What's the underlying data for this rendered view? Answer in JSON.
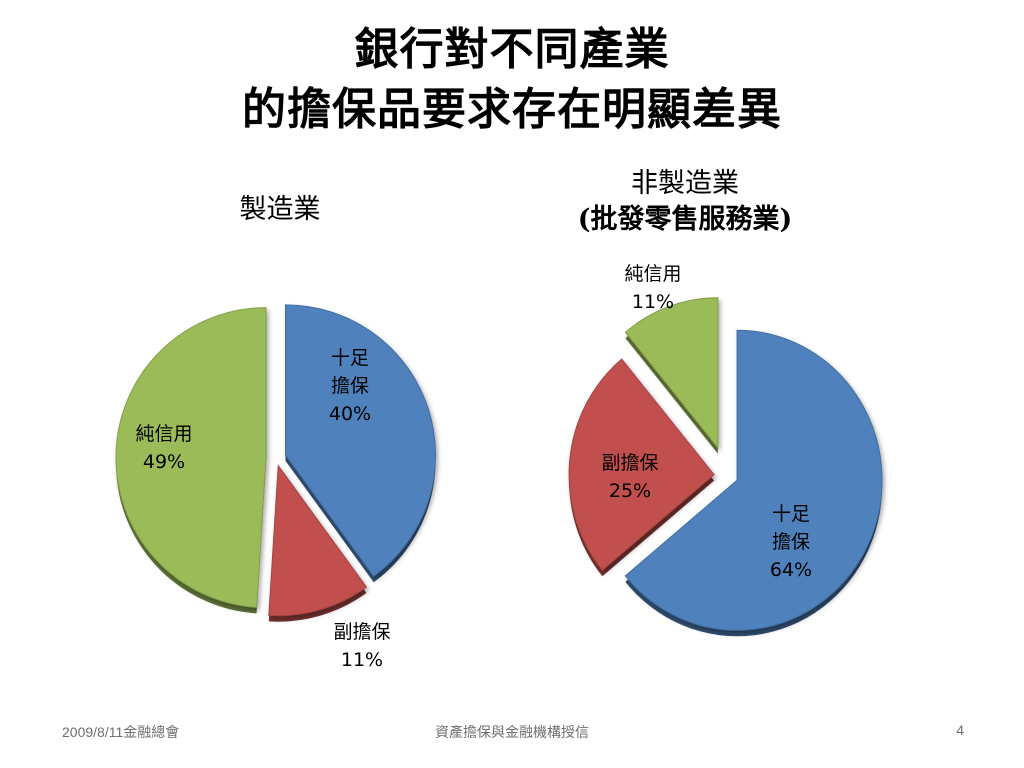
{
  "slide": {
    "title_line1": "銀行對不同產業",
    "title_line2": "的擔保品要求存在明顯差異"
  },
  "footer": {
    "left": "2009/8/11金融總會",
    "center": "資產擔保與金融機構授信",
    "right": "4"
  },
  "colors": {
    "blue": "#4f81bd",
    "red": "#c0504d",
    "green": "#9bbb59"
  },
  "chart_data": [
    {
      "type": "pie",
      "title_lines": [
        "製造業"
      ],
      "slices": [
        {
          "label_lines": [
            "十足",
            "擔保"
          ],
          "value_label": "40%",
          "value": 40,
          "color": "#4f81bd"
        },
        {
          "label_lines": [
            "副擔保"
          ],
          "value_label": "11%",
          "value": 11,
          "color": "#c0504d"
        },
        {
          "label_lines": [
            "純信用"
          ],
          "value_label": "49%",
          "value": 49,
          "color": "#9bbb59"
        }
      ]
    },
    {
      "type": "pie",
      "title_lines": [
        "非製造業",
        "(批發零售服務業)"
      ],
      "slices": [
        {
          "label_lines": [
            "十足",
            "擔保"
          ],
          "value_label": "64%",
          "value": 64,
          "color": "#4f81bd"
        },
        {
          "label_lines": [
            "副擔保"
          ],
          "value_label": "25%",
          "value": 25,
          "color": "#c0504d"
        },
        {
          "label_lines": [
            "純信用"
          ],
          "value_label": "11%",
          "value": 11,
          "color": "#9bbb59"
        }
      ]
    }
  ]
}
